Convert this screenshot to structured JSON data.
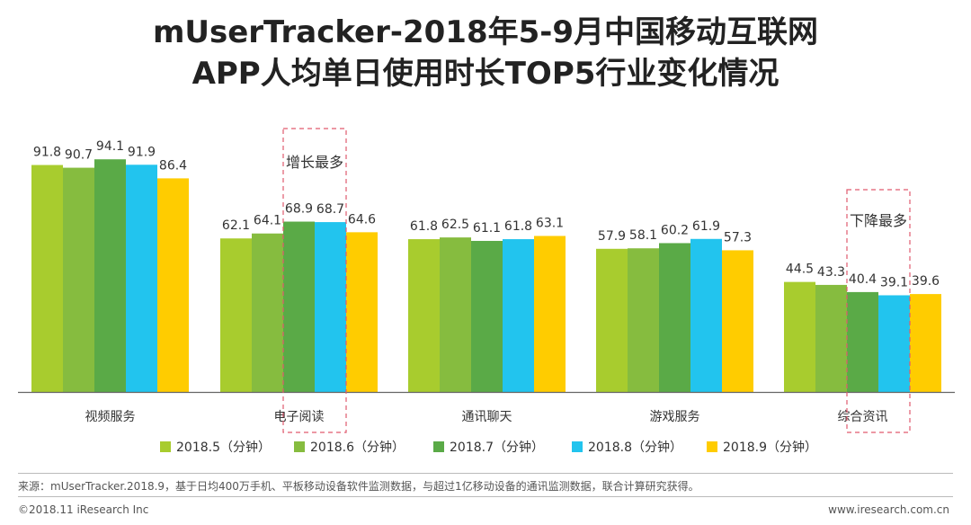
{
  "title_line1": "mUserTracker-2018年5-9月中国移动互联网",
  "title_line2": "APP人均单日使用时长TOP5行业变化情况",
  "chart_data": {
    "type": "bar",
    "categories": [
      "视频服务",
      "电子阅读",
      "通讯聊天",
      "游戏服务",
      "综合资讯"
    ],
    "series": [
      {
        "name": "2018.5（分钟）",
        "color": "#a8cc2e",
        "values": [
          91.8,
          62.1,
          61.8,
          57.9,
          44.5
        ]
      },
      {
        "name": "2018.6（分钟）",
        "color": "#86bc3f",
        "values": [
          90.7,
          64.1,
          62.5,
          58.1,
          43.3
        ]
      },
      {
        "name": "2018.7（分钟）",
        "color": "#5aaa47",
        "values": [
          94.1,
          68.9,
          61.1,
          60.2,
          40.4
        ]
      },
      {
        "name": "2018.8（分钟）",
        "color": "#22c4ee",
        "values": [
          91.9,
          68.7,
          61.8,
          61.9,
          39.1
        ]
      },
      {
        "name": "2018.9（分钟）",
        "color": "#ffcc00",
        "values": [
          86.4,
          64.6,
          63.1,
          57.3,
          39.6
        ]
      }
    ],
    "ylim": [
      0,
      100
    ],
    "value_labels": [
      [
        "91.8",
        "90.7",
        "94.1",
        "91.9",
        "86.4"
      ],
      [
        "62.1",
        "64.1",
        "68.9",
        "68.7",
        "64.6"
      ],
      [
        "61.8",
        "62.5",
        "61.1",
        "61.8",
        "63.1"
      ],
      [
        "57.9",
        "58.1",
        "60.2",
        "61.9",
        "57.3"
      ],
      [
        "44.5",
        "43.3",
        "40.4",
        "39.1",
        "39.6"
      ]
    ],
    "annotations": [
      {
        "text": "增长最多",
        "category_index": 1
      },
      {
        "text": "下降最多",
        "category_index": 4
      }
    ],
    "legend_position": "bottom"
  },
  "footer": {
    "source": "来源：mUserTracker.2018.9，基于日均400万手机、平板移动设备软件监测数据，与超过1亿移动设备的通讯监测数据，联合计算研究获得。",
    "copyright": "©2018.11 iResearch Inc",
    "website": "www.iresearch.com.cn"
  }
}
